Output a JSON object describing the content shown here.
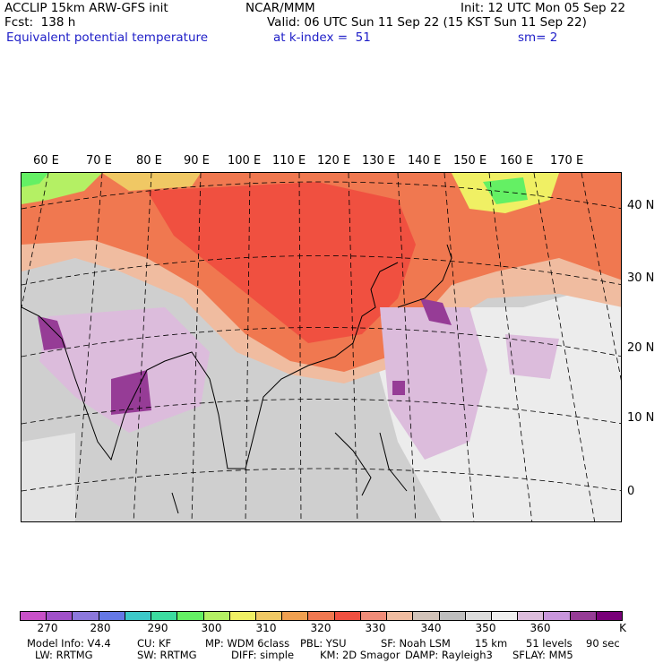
{
  "header": {
    "model": "ACCLIP 15km ARW-GFS init",
    "forecast": "Fcst:  138 h",
    "center": "NCAR/MMM",
    "init": "Init: 12 UTC Mon 05 Sep 22",
    "valid": "Valid: 06 UTC Sun 11 Sep 22 (15 KST Sun 11 Sep 22)",
    "field": "Equivalent potential temperature",
    "level": "at k-index =  51",
    "smoothing": "sm= 2"
  },
  "map": {
    "lon_labels": [
      "60 E",
      "70 E",
      "80 E",
      "90 E",
      "100 E",
      "110 E",
      "120 E",
      "130 E",
      "140 E",
      "150 E",
      "160 E",
      "170 E"
    ],
    "lat_labels": [
      "40 N",
      "30 N",
      "20 N",
      "10 N",
      "0"
    ]
  },
  "colorbar": {
    "colors": [
      "#c850c8",
      "#a050c8",
      "#8c78dc",
      "#6478e6",
      "#3cc8c8",
      "#3cdca0",
      "#64f064",
      "#b4f064",
      "#f0f064",
      "#f0c864",
      "#f0a050",
      "#f07850",
      "#f05040",
      "#f08c78",
      "#f0bca0",
      "#d2c3b9",
      "#bebebe",
      "#dcdcdc",
      "#f0f0f0",
      "#dcbcdc",
      "#c896dc",
      "#963c96",
      "#780078"
    ],
    "labels": [
      "270",
      "280",
      "290",
      "300",
      "310",
      "320",
      "330",
      "340",
      "350",
      "360"
    ],
    "unit": "K"
  },
  "footer": {
    "line1": [
      "Model Info: V4.4",
      "CU: KF",
      "MP: WDM 6class",
      "PBL: YSU",
      "SF: Noah LSM",
      "15 km",
      "51 levels",
      "90 sec"
    ],
    "line2": [
      "LW: RRTMG",
      "SW: RRTMG",
      "DIFF: simple",
      "KM: 2D Smagor",
      "DAMP: Rayleigh3",
      "SFLAY: MM5"
    ]
  }
}
